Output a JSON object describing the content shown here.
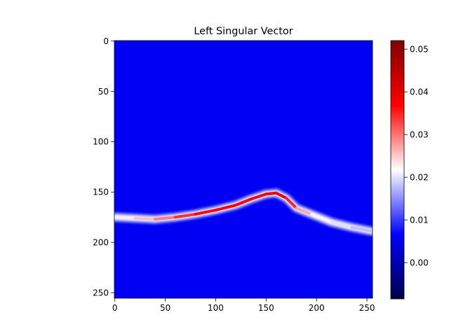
{
  "chart_data": {
    "type": "heatmap",
    "title": "Left Singular Vector",
    "xlabel": "",
    "ylabel": "",
    "image_shape": [
      256,
      256
    ],
    "xlim": [
      0,
      255
    ],
    "ylim": [
      255,
      0
    ],
    "x_ticks": [
      0,
      50,
      100,
      150,
      200,
      250
    ],
    "y_ticks": [
      0,
      50,
      100,
      150,
      200,
      250
    ],
    "colormap": "seismic",
    "colorbar": {
      "range": [
        -0.0085,
        0.052
      ],
      "ticks": [
        0.0,
        0.01,
        0.02,
        0.03,
        0.04,
        0.05
      ],
      "tick_labels": [
        "0.00",
        "0.01",
        "0.02",
        "0.03",
        "0.04",
        "0.05"
      ]
    },
    "background_value": 0.0055,
    "ridge": {
      "description": "Bright band following a hill-shaped curve",
      "points": [
        {
          "x": 0,
          "y": 175,
          "value": 0.022
        },
        {
          "x": 20,
          "y": 176,
          "value": 0.024
        },
        {
          "x": 40,
          "y": 177,
          "value": 0.027
        },
        {
          "x": 60,
          "y": 175,
          "value": 0.032
        },
        {
          "x": 80,
          "y": 172,
          "value": 0.036
        },
        {
          "x": 100,
          "y": 168,
          "value": 0.038
        },
        {
          "x": 120,
          "y": 163,
          "value": 0.038
        },
        {
          "x": 135,
          "y": 157,
          "value": 0.037
        },
        {
          "x": 150,
          "y": 152,
          "value": 0.04
        },
        {
          "x": 160,
          "y": 151,
          "value": 0.038
        },
        {
          "x": 170,
          "y": 156,
          "value": 0.04
        },
        {
          "x": 180,
          "y": 166,
          "value": 0.03
        },
        {
          "x": 195,
          "y": 172,
          "value": 0.024
        },
        {
          "x": 215,
          "y": 180,
          "value": 0.021
        },
        {
          "x": 235,
          "y": 185,
          "value": 0.019
        },
        {
          "x": 255,
          "y": 189,
          "value": 0.017
        }
      ]
    }
  }
}
